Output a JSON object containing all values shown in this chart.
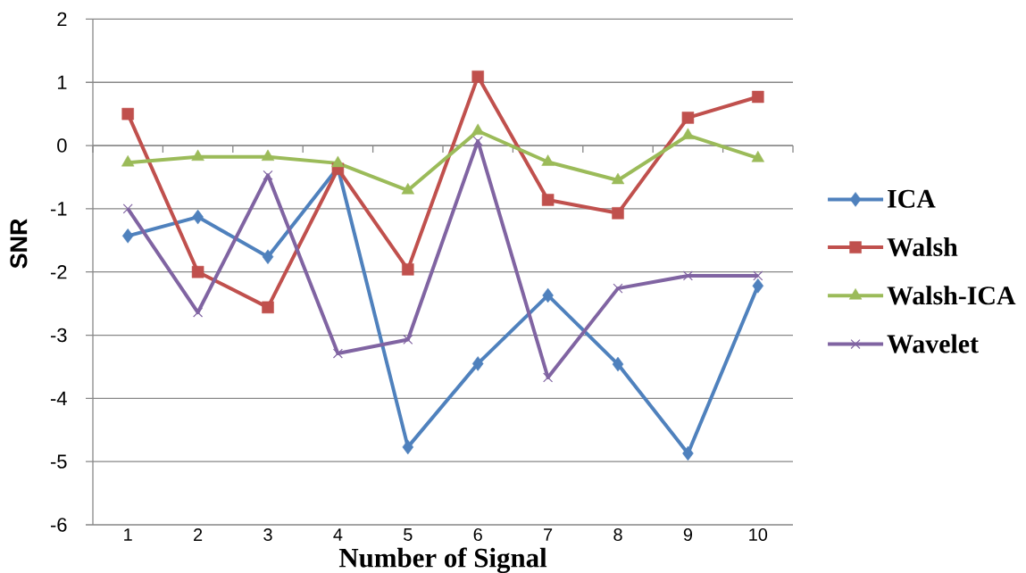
{
  "chart_data": {
    "type": "line",
    "xlabel": "Number of Signal",
    "ylabel": "SNR",
    "categories": [
      "1",
      "2",
      "3",
      "4",
      "5",
      "6",
      "7",
      "8",
      "9",
      "10"
    ],
    "series": [
      {
        "name": "ICA",
        "color": "#4f81bd",
        "marker": "diamond",
        "values": [
          -1.43,
          -1.13,
          -1.76,
          -0.35,
          -4.77,
          -3.45,
          -2.37,
          -3.46,
          -4.87,
          -2.22
        ]
      },
      {
        "name": "Walsh",
        "color": "#c0504d",
        "marker": "square",
        "values": [
          0.5,
          -2.0,
          -2.56,
          -0.37,
          -1.96,
          1.09,
          -0.86,
          -1.07,
          0.44,
          0.77
        ]
      },
      {
        "name": "Walsh-ICA",
        "color": "#9bbb59",
        "marker": "triangle",
        "values": [
          -0.27,
          -0.18,
          -0.18,
          -0.28,
          -0.71,
          0.23,
          -0.26,
          -0.55,
          0.16,
          -0.2
        ]
      },
      {
        "name": "Wavelet",
        "color": "#8064a2",
        "marker": "cross",
        "values": [
          -1.0,
          -2.64,
          -0.47,
          -3.29,
          -3.07,
          0.07,
          -3.67,
          -2.26,
          -2.06,
          -2.06
        ]
      }
    ],
    "ylim": [
      -6,
      2
    ],
    "yticks": [
      -6,
      -5,
      -4,
      -3,
      -2,
      -1,
      0,
      1,
      2
    ],
    "grid": "y",
    "legend": "right",
    "line_style": "solid"
  }
}
